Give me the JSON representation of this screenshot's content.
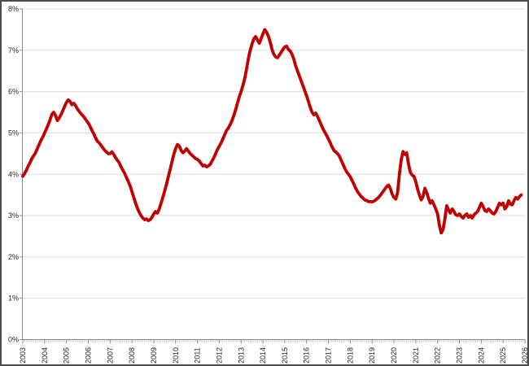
{
  "chart_data": {
    "type": "line",
    "title": "",
    "unit": "%",
    "frequency": "monthly",
    "x_start": "2003-01",
    "x_end": "2025-11",
    "x_tick_labels": [
      "2003",
      "2004",
      "2005",
      "2006",
      "2007",
      "2008",
      "2009",
      "2010",
      "2011",
      "2012",
      "2013",
      "2014",
      "2015",
      "2016",
      "2017",
      "2018",
      "2019",
      "2020",
      "2021",
      "2022",
      "2023",
      "2024",
      "2025",
      "2026"
    ],
    "y_tick_labels": [
      "0%",
      "1%",
      "2%",
      "3%",
      "4%",
      "5%",
      "6%",
      "7%",
      "8%"
    ],
    "ylim": [
      0,
      8
    ],
    "grid": "horizontal",
    "legend": "none",
    "values": [
      3.95,
      4.02,
      4.1,
      4.2,
      4.28,
      4.38,
      4.45,
      4.52,
      4.62,
      4.72,
      4.82,
      4.9,
      5.0,
      5.1,
      5.2,
      5.32,
      5.45,
      5.5,
      5.42,
      5.3,
      5.36,
      5.44,
      5.54,
      5.64,
      5.74,
      5.8,
      5.76,
      5.68,
      5.72,
      5.66,
      5.58,
      5.52,
      5.46,
      5.42,
      5.36,
      5.3,
      5.24,
      5.16,
      5.06,
      4.98,
      4.88,
      4.8,
      4.76,
      4.7,
      4.64,
      4.58,
      4.54,
      4.5,
      4.5,
      4.54,
      4.48,
      4.4,
      4.34,
      4.28,
      4.18,
      4.1,
      4.02,
      3.92,
      3.82,
      3.72,
      3.58,
      3.44,
      3.3,
      3.18,
      3.08,
      3.0,
      2.94,
      2.9,
      2.92,
      2.88,
      2.9,
      2.96,
      3.04,
      3.1,
      3.06,
      3.16,
      3.3,
      3.44,
      3.6,
      3.76,
      3.94,
      4.12,
      4.3,
      4.48,
      4.62,
      4.72,
      4.68,
      4.58,
      4.52,
      4.56,
      4.62,
      4.56,
      4.5,
      4.46,
      4.42,
      4.38,
      4.36,
      4.32,
      4.26,
      4.2,
      4.22,
      4.18,
      4.2,
      4.24,
      4.32,
      4.4,
      4.5,
      4.6,
      4.68,
      4.76,
      4.86,
      4.96,
      5.06,
      5.12,
      5.2,
      5.3,
      5.42,
      5.56,
      5.72,
      5.88,
      6.0,
      6.15,
      6.32,
      6.55,
      6.8,
      7.0,
      7.15,
      7.28,
      7.33,
      7.25,
      7.17,
      7.28,
      7.4,
      7.5,
      7.44,
      7.34,
      7.2,
      7.02,
      6.9,
      6.84,
      6.82,
      6.88,
      6.95,
      7.02,
      7.08,
      7.1,
      7.02,
      6.98,
      6.9,
      6.78,
      6.62,
      6.5,
      6.38,
      6.26,
      6.14,
      6.02,
      5.9,
      5.76,
      5.62,
      5.5,
      5.44,
      5.48,
      5.4,
      5.3,
      5.2,
      5.1,
      5.02,
      4.94,
      4.85,
      4.76,
      4.66,
      4.58,
      4.54,
      4.5,
      4.44,
      4.34,
      4.24,
      4.14,
      4.06,
      4.0,
      3.94,
      3.85,
      3.76,
      3.66,
      3.58,
      3.52,
      3.46,
      3.42,
      3.38,
      3.36,
      3.34,
      3.34,
      3.33,
      3.35,
      3.38,
      3.42,
      3.46,
      3.52,
      3.58,
      3.64,
      3.7,
      3.74,
      3.66,
      3.52,
      3.44,
      3.4,
      3.55,
      4.0,
      4.35,
      4.55,
      4.48,
      4.52,
      4.25,
      4.05,
      3.98,
      3.95,
      3.82,
      3.64,
      3.5,
      3.38,
      3.46,
      3.66,
      3.56,
      3.42,
      3.3,
      3.36,
      3.26,
      3.16,
      3.04,
      2.76,
      2.58,
      2.66,
      2.92,
      3.24,
      3.14,
      3.06,
      3.16,
      3.1,
      3.02,
      3.0,
      3.04,
      2.98,
      2.94,
      3.0,
      3.04,
      2.96,
      3.0,
      2.94,
      3.02,
      3.06,
      3.1,
      3.2,
      3.3,
      3.22,
      3.12,
      3.1,
      3.16,
      3.12,
      3.06,
      3.04,
      3.1,
      3.2,
      3.3,
      3.26,
      3.3,
      3.16,
      3.22,
      3.36,
      3.28,
      3.26,
      3.36,
      3.44,
      3.4,
      3.46,
      3.5
    ],
    "colors": {
      "line": "#C00000",
      "grid": "#DCDCDC",
      "axis": "#8C8C8C",
      "minor_tick": "#C8C8C8",
      "label": "#262626",
      "border": "#4D4D4D",
      "background": "#FFFFFF"
    }
  }
}
